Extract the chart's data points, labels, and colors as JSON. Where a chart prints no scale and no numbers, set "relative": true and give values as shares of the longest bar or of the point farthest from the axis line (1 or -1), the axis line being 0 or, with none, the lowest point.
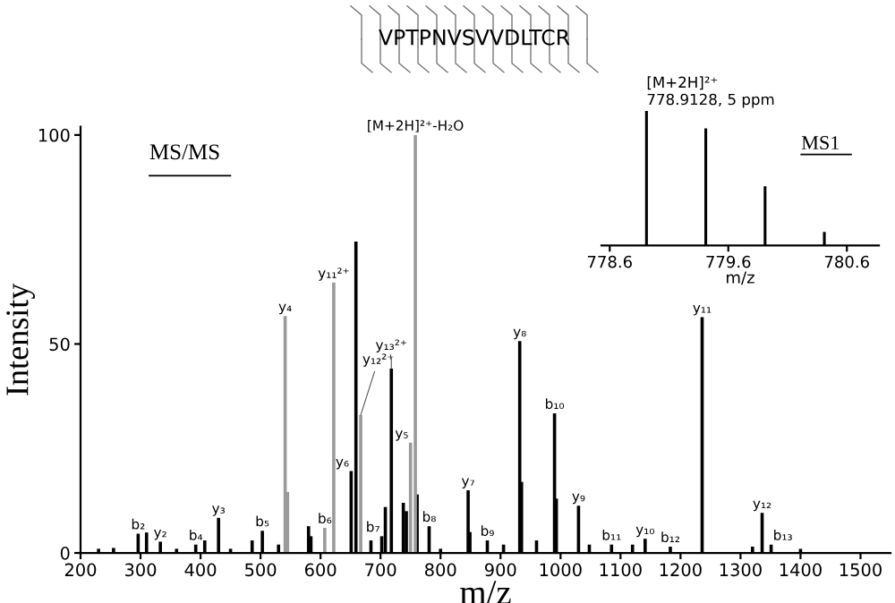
{
  "chart_data": [
    {
      "type": "bar",
      "xlabel": "m/z",
      "ylabel": "Intensity",
      "xlim": [
        200,
        1550
      ],
      "ylim": [
        0,
        102
      ],
      "xticks": [
        200,
        300,
        400,
        500,
        600,
        700,
        800,
        900,
        1000,
        1100,
        1200,
        1300,
        1400,
        1500
      ],
      "yticks": [
        0,
        50,
        100
      ],
      "grid": false,
      "legend": false,
      "series": [
        {
          "color": "#000000",
          "x": [
            230,
            255,
            296,
            310,
            333,
            360,
            392,
            407,
            430,
            450,
            486,
            503,
            530,
            580,
            584,
            651,
            659,
            684,
            702,
            708,
            718,
            738,
            743,
            761,
            781,
            800,
            846,
            849,
            878,
            905,
            932,
            935,
            960,
            990,
            993,
            1030,
            1048,
            1085,
            1120,
            1141,
            1183,
            1236,
            1320,
            1336,
            1351,
            1400
          ],
          "values": [
            1,
            1.2,
            4.6,
            4.9,
            2.7,
            1,
            2,
            3,
            8.4,
            1,
            3,
            5.3,
            2,
            6.4,
            4,
            19.6,
            74.5,
            3,
            4,
            11,
            44.1,
            12,
            10,
            14,
            6.4,
            1,
            15,
            5,
            3,
            2,
            50.7,
            17,
            3,
            33.4,
            13,
            11.3,
            2,
            2,
            2,
            3.4,
            1.5,
            56.4,
            1.5,
            9.6,
            2,
            1
          ]
        },
        {
          "color": "#9a9a9a",
          "x": [
            541,
            545,
            607,
            622,
            667,
            750,
            758
          ],
          "values": [
            56.7,
            14.6,
            6,
            64.7,
            33,
            26.4,
            100
          ]
        }
      ],
      "annotations": [
        "VPTPNVSVVDLTCR",
        "MS/MS",
        {
          "text": "b₂",
          "x": 296,
          "y": 4.6
        },
        {
          "text": "y₂",
          "x": 333,
          "y": 2.7
        },
        {
          "text": "b₄",
          "x": 392,
          "y": 2
        },
        {
          "text": "y₃",
          "x": 430,
          "y": 8.4
        },
        {
          "text": "b₅",
          "x": 503,
          "y": 5.3
        },
        {
          "text": "y₄",
          "x": 541,
          "y": 56.7
        },
        {
          "text": "y₁₁²⁺",
          "x": 622,
          "y": 64.7
        },
        {
          "text": "b₆",
          "x": 607,
          "y": 6
        },
        {
          "text": "y₆",
          "x": 651,
          "y": 19.6
        },
        {
          "text": "y₁₂²⁺",
          "x": 667,
          "y": 33
        },
        {
          "text": "b₇",
          "x": 702,
          "y": 4
        },
        {
          "text": "y₁₃²⁺",
          "x": 718,
          "y": 44.1
        },
        {
          "text": "[M+2H]²⁺-H₂O",
          "x": 758,
          "y": 100
        },
        {
          "text": "y₅",
          "x": 750,
          "y": 26.4
        },
        {
          "text": "b₈",
          "x": 781,
          "y": 6.4
        },
        {
          "text": "y₇",
          "x": 846,
          "y": 15
        },
        {
          "text": "b₉",
          "x": 878,
          "y": 3
        },
        {
          "text": "y₈",
          "x": 932,
          "y": 50.7
        },
        {
          "text": "b₁₀",
          "x": 990,
          "y": 33.4
        },
        {
          "text": "y₉",
          "x": 1030,
          "y": 11.3
        },
        {
          "text": "b₁₁",
          "x": 1085,
          "y": 2
        },
        {
          "text": "y₁₀",
          "x": 1141,
          "y": 3.4
        },
        {
          "text": "b₁₂",
          "x": 1183,
          "y": 1.5
        },
        {
          "text": "y₁₁",
          "x": 1236,
          "y": 56.4
        },
        {
          "text": "y₁₂",
          "x": 1336,
          "y": 9.6
        },
        {
          "text": "b₁₃",
          "x": 1351,
          "y": 2
        }
      ]
    },
    {
      "type": "bar",
      "relative": true,
      "xlabel": "m/z",
      "xlim": [
        778.53,
        780.87
      ],
      "xticks": [
        778.6,
        779.6,
        780.6
      ],
      "tick_labels": "x",
      "grid": false,
      "legend": false,
      "series": [
        {
          "color": "#000000",
          "x": [
            778.91,
            779.41,
            779.91,
            780.41
          ],
          "values": [
            1,
            0.87,
            0.44,
            0.1
          ]
        }
      ],
      "annotations": [
        "[M+2H]²⁺",
        "778.9128, 5 ppm",
        "MS1"
      ]
    }
  ]
}
